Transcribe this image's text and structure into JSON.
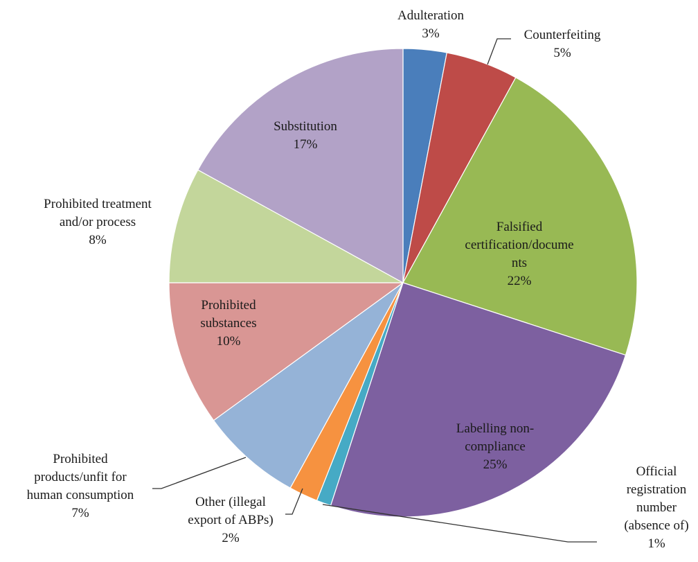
{
  "chart_data": {
    "type": "pie",
    "title": "",
    "legend": "none",
    "start_angle_deg": 0,
    "direction": "clockwise",
    "slices": [
      {
        "lines": [
          "Adulteration",
          "3%"
        ],
        "value": 3,
        "color": "#4a7ebb"
      },
      {
        "lines": [
          "Counterfeiting",
          "5%"
        ],
        "value": 5,
        "color": "#be4b48"
      },
      {
        "lines": [
          "Falsified",
          "certification/docume",
          "nts",
          "22%"
        ],
        "value": 22,
        "color": "#98b954"
      },
      {
        "lines": [
          "Labelling  non-",
          "compliance",
          "25%"
        ],
        "value": 25,
        "color": "#7d60a0"
      },
      {
        "lines": [
          "Official",
          "registration",
          "number",
          "(absence of)",
          "1%"
        ],
        "value": 1,
        "color": "#46aac5"
      },
      {
        "lines": [
          "Other (illegal",
          "export of ABPs)",
          "2%"
        ],
        "value": 2,
        "color": "#f69240"
      },
      {
        "lines": [
          "Prohibited",
          "products/unfit for",
          "human consumption",
          "7%"
        ],
        "value": 7,
        "color": "#95b3d7"
      },
      {
        "lines": [
          "Prohibited",
          "substances",
          "10%"
        ],
        "value": 10,
        "color": "#d99694"
      },
      {
        "lines": [
          "Prohibited treatment",
          "and/or process",
          "8%"
        ],
        "value": 8,
        "color": "#c3d69b"
      },
      {
        "lines": [
          "Substitution",
          "17%"
        ],
        "value": 17,
        "color": "#b2a2c7"
      }
    ]
  }
}
